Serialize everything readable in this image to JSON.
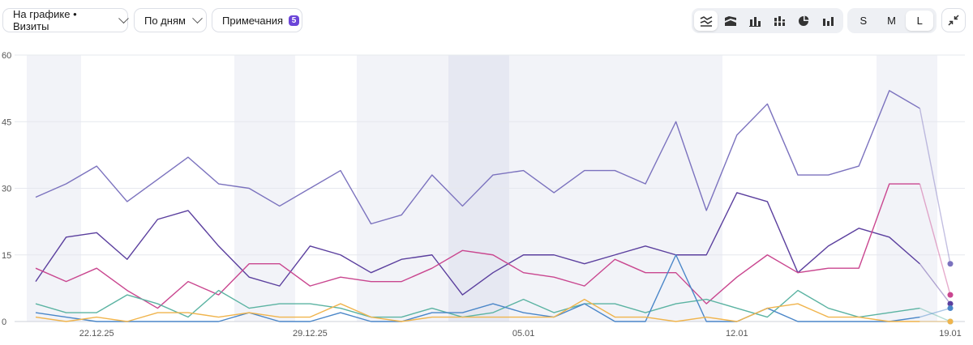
{
  "toolbar": {
    "metric_label": "На графике • Визиты",
    "period_label": "По дням",
    "notes_label": "Примечания",
    "notes_count": "5",
    "chart_type_icons": [
      "lines-icon",
      "stacked-area-icon",
      "bar-icon",
      "stacked-bar-icon",
      "pie-icon",
      "column-icon"
    ],
    "active_chart_type": 0,
    "sizes": [
      "S",
      "M",
      "L"
    ],
    "active_size": "L",
    "collapse_icon": "collapse-icon"
  },
  "chart_data": {
    "type": "line",
    "x_tick_labels": [
      "22.12.25",
      "29.12.25",
      "05.01",
      "12.01",
      "19.01"
    ],
    "y_ticks": [
      0,
      15,
      30,
      45,
      60
    ],
    "ylim": [
      0,
      60
    ],
    "grid": true,
    "series": [
      {
        "color": "#7b72be",
        "values": [
          28,
          31,
          35,
          27,
          32,
          37,
          31,
          30,
          26,
          30,
          34,
          22,
          24,
          33,
          26,
          33,
          34,
          29,
          34,
          34,
          31,
          45,
          25,
          42,
          49,
          33,
          33,
          35,
          52,
          48,
          13
        ]
      },
      {
        "color": "#5b3f9e",
        "values": [
          9,
          19,
          20,
          14,
          23,
          25,
          17,
          10,
          8,
          17,
          15,
          11,
          14,
          15,
          6,
          11,
          15,
          15,
          13,
          15,
          17,
          15,
          15,
          29,
          27,
          11,
          17,
          21,
          19,
          13,
          4
        ]
      },
      {
        "color": "#c9468f",
        "values": [
          12,
          9,
          12,
          7,
          3,
          9,
          6,
          13,
          13,
          8,
          10,
          9,
          9,
          12,
          16,
          15,
          11,
          10,
          8,
          14,
          11,
          11,
          4,
          10,
          15,
          11,
          12,
          12,
          31,
          31,
          6
        ]
      },
      {
        "color": "#5bb3a2",
        "values": [
          4,
          2,
          2,
          6,
          4,
          1,
          7,
          3,
          4,
          4,
          3,
          1,
          1,
          3,
          1,
          2,
          5,
          2,
          4,
          4,
          2,
          4,
          5,
          3,
          1,
          7,
          3,
          1,
          2,
          3,
          0
        ]
      },
      {
        "color": "#4a86c8",
        "values": [
          2,
          1,
          0,
          0,
          0,
          0,
          0,
          2,
          0,
          0,
          2,
          0,
          0,
          2,
          2,
          4,
          2,
          1,
          4,
          0,
          0,
          15,
          0,
          0,
          3,
          0,
          0,
          0,
          0,
          1,
          3
        ]
      },
      {
        "color": "#f0b44c",
        "values": [
          1,
          0,
          1,
          0,
          2,
          2,
          1,
          2,
          1,
          1,
          4,
          1,
          0,
          1,
          1,
          1,
          1,
          1,
          5,
          1,
          1,
          0,
          1,
          0,
          3,
          4,
          1,
          1,
          0,
          0,
          0
        ]
      }
    ]
  }
}
